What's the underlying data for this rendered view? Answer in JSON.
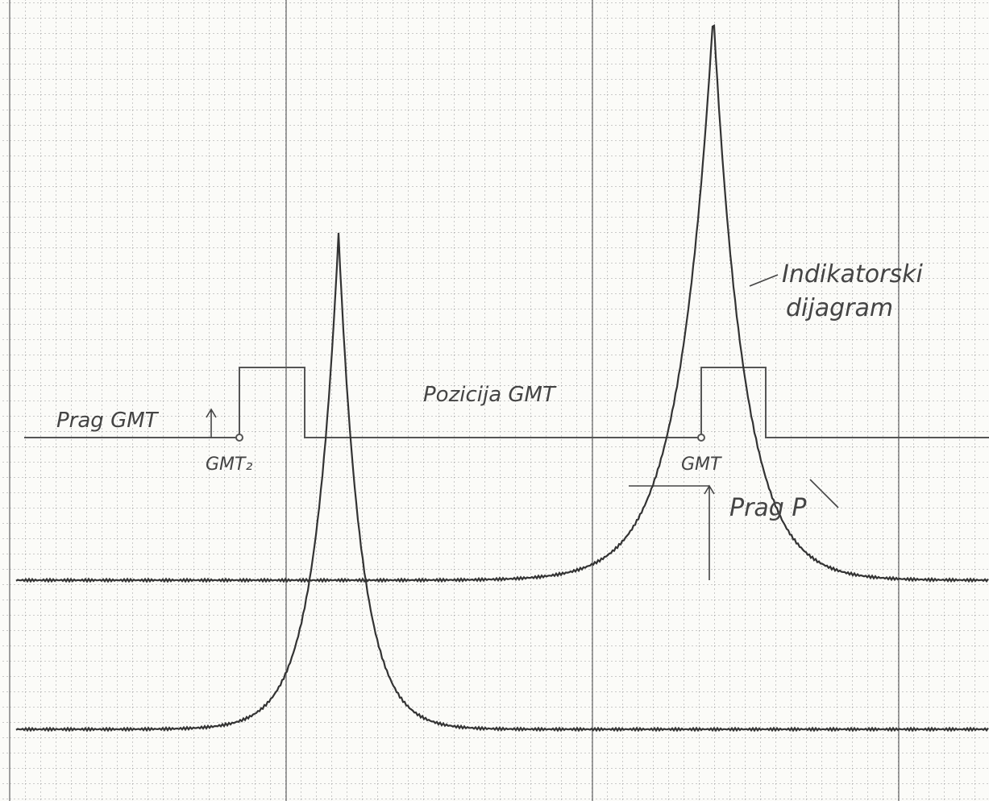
{
  "labels": {
    "prag_gmt": "Prag GMT",
    "gmt_2": "GMT₂",
    "pozicija_gmt": "Pozicija GMT",
    "gmt": "GMT",
    "indikatorski": "Indikatorski",
    "dijagram": "dijagram",
    "prag_p": "Prag P"
  }
}
